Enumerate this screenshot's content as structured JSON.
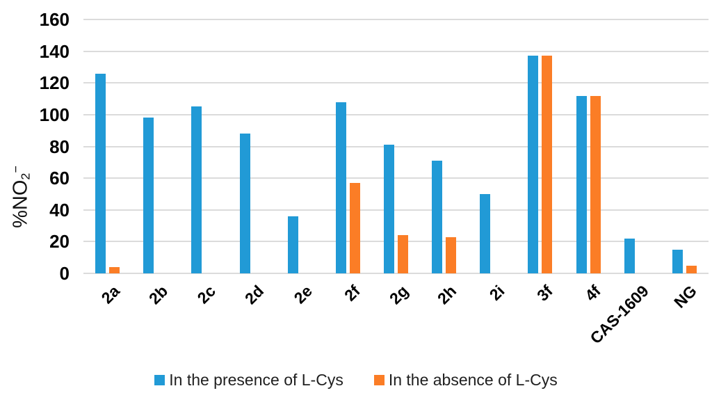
{
  "chart_data": {
    "type": "bar",
    "title": "",
    "ylabel": {
      "prefix": "%NO",
      "sub": "2",
      "sup": "−"
    },
    "ylim": [
      0,
      160
    ],
    "yticks": [
      0,
      20,
      40,
      60,
      80,
      100,
      120,
      140,
      160
    ],
    "grid": "horizontal-only",
    "grid_color": "#DBDBDB",
    "legend_position": "bottom-center",
    "categories": [
      "2a",
      "2b",
      "2c",
      "2d",
      "2e",
      "2f",
      "2g",
      "2h",
      "2i",
      "3f",
      "4f",
      "CAS-1609",
      "NG"
    ],
    "series": [
      {
        "name": "In the presence of L-Cys",
        "color": "#219AD6",
        "values": [
          126,
          98,
          105,
          88,
          36,
          108,
          81,
          71,
          50,
          137,
          112,
          22,
          15
        ]
      },
      {
        "name": "In the absence of L-Cys",
        "color": "#FB7D26",
        "values": [
          4,
          0,
          0,
          0,
          0,
          57,
          24,
          23,
          0,
          137,
          112,
          0,
          5
        ]
      }
    ]
  }
}
